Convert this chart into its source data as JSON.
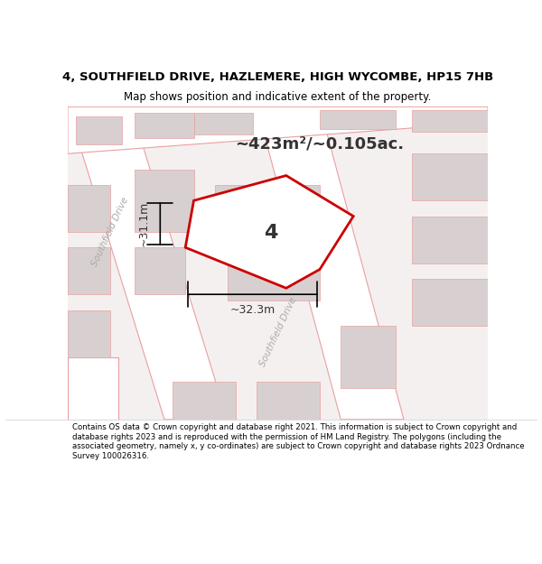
{
  "title_line1": "4, SOUTHFIELD DRIVE, HAZLEMERE, HIGH WYCOMBE, HP15 7HB",
  "title_line2": "Map shows position and indicative extent of the property.",
  "area_label": "~423m²/~0.105ac.",
  "property_number": "4",
  "dim_vertical": "~31.1m",
  "dim_horizontal": "~32.3m",
  "road_label1": "Southfield Drive",
  "road_label2": "Southfield Drive",
  "footer": "Contains OS data © Crown copyright and database right 2021. This information is subject to Crown copyright and database rights 2023 and is reproduced with the permission of HM Land Registry. The polygons (including the associated geometry, namely x, y co-ordinates) are subject to Crown copyright and database rights 2023 Ordnance Survey 100026316.",
  "bg_color": "#f5f0f0",
  "map_bg": "#f5f0f0",
  "road_color": "#ffffff",
  "building_color": "#d8d0d0",
  "property_fill": "#ffffff",
  "property_edge": "#cc0000",
  "road_line_color": "#e8a0a0",
  "text_color": "#888888",
  "footer_color": "#000000",
  "title_color": "#000000"
}
